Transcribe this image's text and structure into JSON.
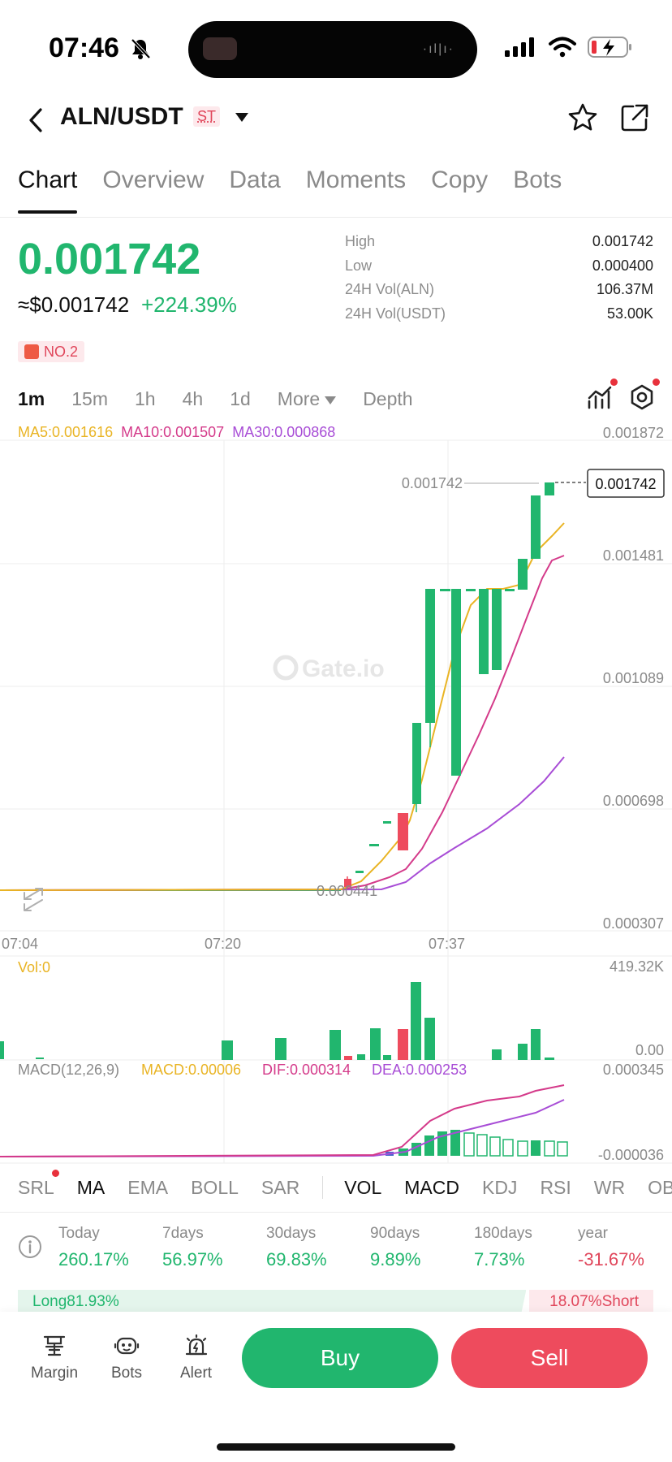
{
  "status": {
    "time": "07:46"
  },
  "header": {
    "pair": "ALN/USDT",
    "badge": "ST"
  },
  "tabs": [
    "Chart",
    "Overview",
    "Data",
    "Moments",
    "Copy",
    "Bots"
  ],
  "price": {
    "last": "0.001742",
    "approx": "≈$0.001742",
    "change": "+224.39%",
    "rank": "NO.2"
  },
  "stats": [
    {
      "label": "High",
      "value": "0.001742"
    },
    {
      "label": "Low",
      "value": "0.000400"
    },
    {
      "label": "24H Vol(ALN)",
      "value": "106.37M"
    },
    {
      "label": "24H Vol(USDT)",
      "value": "53.00K"
    }
  ],
  "intervals": [
    "1m",
    "15m",
    "1h",
    "4h",
    "1d",
    "More",
    "Depth"
  ],
  "ma_legend": {
    "ma5": "MA5:0.001616",
    "ma10": "MA10:0.001507",
    "ma30": "MA30:0.000868"
  },
  "axes": {
    "price_ticks": [
      "0.001872",
      "0.001481",
      "0.001089",
      "0.000698",
      "0.000307"
    ],
    "time_ticks": [
      "07:04",
      "07:20",
      "07:37"
    ],
    "high_mark": "0.001742",
    "low_mark": "0.000441",
    "current_box": "0.001742",
    "watermark": "Gate.io"
  },
  "volume": {
    "label": "Vol:0",
    "max": "419.32K",
    "min": "0.00"
  },
  "macd": {
    "label": "MACD(12,26,9)",
    "macd": "MACD:0.00006",
    "dif": "DIF:0.000314",
    "dea": "DEA:0.000253",
    "max": "0.000345",
    "min": "-0.000036"
  },
  "indicators": [
    "SRL",
    "MA",
    "EMA",
    "BOLL",
    "SAR",
    "VOL",
    "MACD",
    "KDJ",
    "RSI",
    "WR",
    "OBV"
  ],
  "performance": [
    {
      "label": "Today",
      "value": "260.17%"
    },
    {
      "label": "7days",
      "value": "56.97%"
    },
    {
      "label": "30days",
      "value": "69.83%"
    },
    {
      "label": "90days",
      "value": "9.89%"
    },
    {
      "label": "180days",
      "value": "7.73%"
    },
    {
      "label": "year",
      "value": "-31.67%"
    }
  ],
  "long_short": {
    "long": "Long81.93%",
    "short": "18.07%Short"
  },
  "bottom": {
    "margin": "Margin",
    "bots": "Bots",
    "alert": "Alert",
    "buy": "Buy",
    "sell": "Sell"
  },
  "colors": {
    "up": "#21b66e",
    "down": "#ee4b5d",
    "ma5": "#e9b424",
    "ma10": "#d43a8a",
    "ma30": "#a84dd6"
  }
}
